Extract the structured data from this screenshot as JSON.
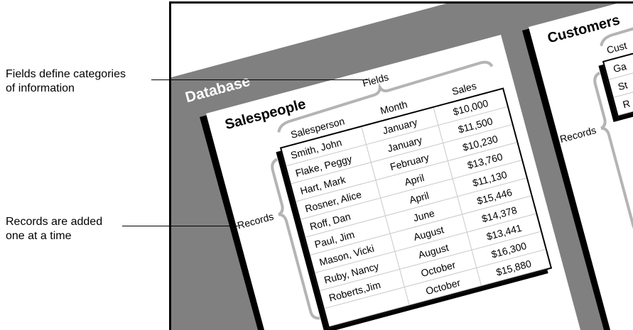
{
  "annotations": {
    "fields_line1": "Fields define categories",
    "fields_line2": "of information",
    "records_line1": "Records are added",
    "records_line2": "one at a time"
  },
  "database": {
    "label": "Database",
    "panel_color": "#808080",
    "brace_color": "#b4b4b4"
  },
  "salespeople": {
    "title": "Salespeople",
    "fields_label": "Fields",
    "records_label": "Records",
    "headers": [
      "Salesperson",
      "Month",
      "Sales"
    ],
    "rows": [
      [
        "Smith, John",
        "January",
        "$10,000"
      ],
      [
        "Flake, Peggy",
        "January",
        "$11,500"
      ],
      [
        "Hart, Mark",
        "February",
        "$10,230"
      ],
      [
        "Rosner, Alice",
        "April",
        "$13,760"
      ],
      [
        "Roff, Dan",
        "April",
        "$11,130"
      ],
      [
        "Paul, Jim",
        "June",
        "$15,446"
      ],
      [
        "Mason, Vicki",
        "August",
        "$14,378"
      ],
      [
        "Ruby, Nancy",
        "August",
        "$13,441"
      ],
      [
        "Roberts,Jim",
        "October",
        "$16,300"
      ],
      [
        "",
        "October",
        "$15,880"
      ]
    ]
  },
  "customers": {
    "title": "Customers",
    "records_label": "Records",
    "header": "Cust",
    "rows": [
      "Ga",
      "St",
      "R"
    ]
  }
}
